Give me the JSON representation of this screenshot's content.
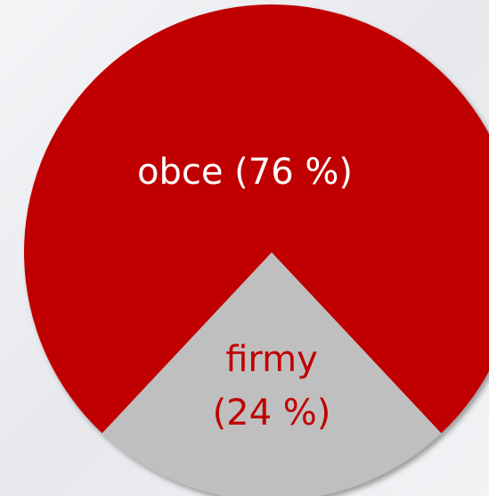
{
  "chart_data": {
    "type": "pie",
    "categories": [
      "obce",
      "firmy"
    ],
    "values": [
      76,
      24
    ],
    "value_labels": [
      "obce (76 %)",
      "firmy (24 %)"
    ],
    "colors": [
      "#c00000",
      "#bfbfbf"
    ],
    "label_colors": [
      "#ffffff",
      "#c00000"
    ]
  }
}
